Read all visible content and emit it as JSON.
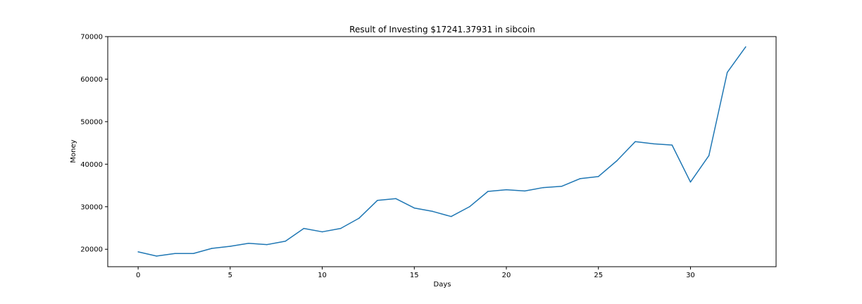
{
  "chart_data": {
    "type": "line",
    "title": "Result of Investing $17241.37931 in sibcoin",
    "xlabel": "Days",
    "ylabel": "Money",
    "xlim": [
      -1.65,
      34.65
    ],
    "ylim": [
      15900,
      70000
    ],
    "xticks": [
      0,
      5,
      10,
      15,
      20,
      25,
      30
    ],
    "yticks": [
      20000,
      30000,
      40000,
      50000,
      60000,
      70000
    ],
    "grid": false,
    "line_color": "#1f77b4",
    "series": [
      {
        "x": [
          0,
          1,
          2,
          3,
          4,
          5,
          6,
          7,
          8,
          9,
          10,
          11,
          12,
          13,
          14,
          15,
          16,
          17,
          18,
          19,
          20,
          21,
          22,
          23,
          24,
          25,
          26,
          27,
          28,
          29,
          30,
          31,
          32,
          33
        ],
        "values": [
          19400,
          18400,
          19000,
          19000,
          20200,
          20700,
          21400,
          21100,
          21900,
          24900,
          24100,
          24900,
          27300,
          31500,
          31900,
          29700,
          28900,
          27700,
          30000,
          33600,
          34000,
          33700,
          34500,
          34800,
          36600,
          37100,
          40800,
          45300,
          44800,
          44500,
          35800,
          42000,
          61600,
          67600
        ]
      }
    ]
  }
}
